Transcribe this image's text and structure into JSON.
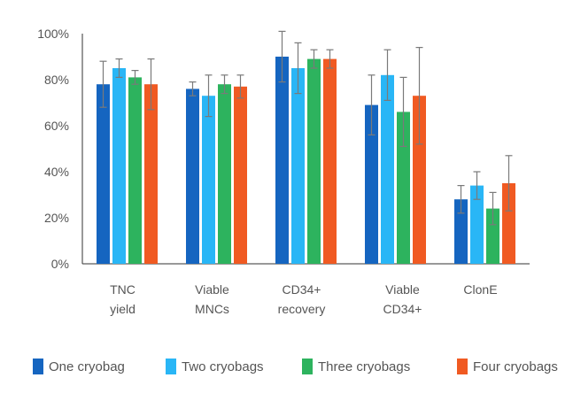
{
  "chart_data": {
    "type": "bar",
    "title": "",
    "xlabel": "",
    "ylabel": "",
    "ylim": [
      0,
      100
    ],
    "y_ticks": [
      "0%",
      "20%",
      "40%",
      "60%",
      "80%",
      "100%"
    ],
    "y_tick_values": [
      0,
      20,
      40,
      60,
      80,
      100
    ],
    "categories": [
      [
        "TNC",
        "yield"
      ],
      [
        "Viable",
        "MNCs"
      ],
      [
        "CD34+",
        "recovery"
      ],
      [
        "Viable",
        "CD34+"
      ],
      [
        "ClonE"
      ]
    ],
    "series": [
      {
        "name": "One cryobag",
        "color": "#1565C0",
        "values": [
          78,
          76,
          90,
          69,
          28
        ],
        "error": [
          10,
          3,
          11,
          13,
          6
        ]
      },
      {
        "name": "Two cryobags",
        "color": "#29B6F6",
        "values": [
          85,
          73,
          85,
          82,
          34
        ],
        "error": [
          4,
          9,
          11,
          11,
          6
        ]
      },
      {
        "name": "Three cryobags",
        "color": "#2DB35E",
        "values": [
          81,
          78,
          89,
          66,
          24
        ],
        "error": [
          3,
          4,
          4,
          15,
          7
        ]
      },
      {
        "name": "Four cryobags",
        "color": "#F05A22",
        "values": [
          78,
          77,
          89,
          73,
          35
        ],
        "error": [
          11,
          5,
          4,
          21,
          12
        ]
      }
    ],
    "grid": false,
    "legend_position": "bottom"
  }
}
